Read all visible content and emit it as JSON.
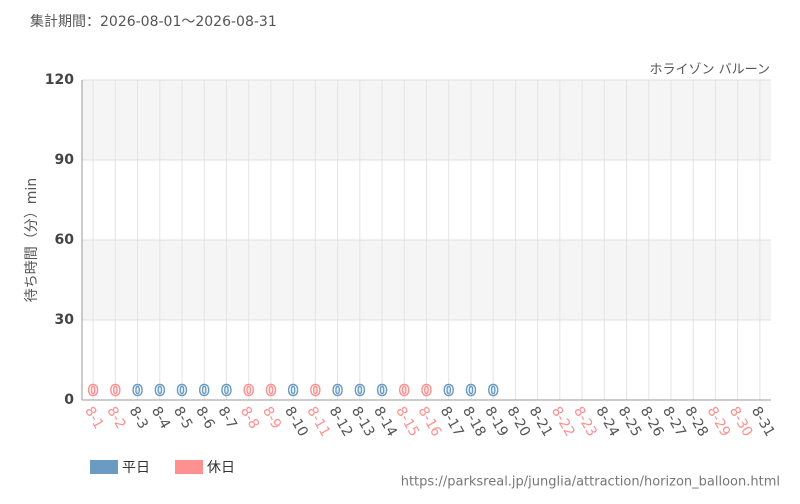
{
  "chart_data": {
    "type": "bar",
    "title": "集計期間：2026-08-01～2026-08-31",
    "subtitle": "ホライゾン バルーン",
    "y_label": "待ち時間（分）min",
    "source": "https://parksreal.jp/junglia/attraction/horizon_balloon.html",
    "categories": [
      "8-1",
      "8-2",
      "8-3",
      "8-4",
      "8-5",
      "8-6",
      "8-7",
      "8-8",
      "8-9",
      "8-10",
      "8-11",
      "8-12",
      "8-13",
      "8-14",
      "8-15",
      "8-16",
      "8-17",
      "8-18",
      "8-19",
      "8-20",
      "8-21",
      "8-22",
      "8-23",
      "8-24",
      "8-25",
      "8-26",
      "8-27",
      "8-28",
      "8-29",
      "8-30",
      "8-31"
    ],
    "category_colors": [
      "#ff9090",
      "#ff9090",
      "#555555",
      "#555555",
      "#555555",
      "#555555",
      "#555555",
      "#ff9090",
      "#ff9090",
      "#555555",
      "#ff9090",
      "#555555",
      "#555555",
      "#555555",
      "#ff9090",
      "#ff9090",
      "#555555",
      "#555555",
      "#555555",
      "#555555",
      "#555555",
      "#ff9090",
      "#ff9090",
      "#555555",
      "#555555",
      "#555555",
      "#555555",
      "#555555",
      "#ff9090",
      "#ff9090",
      "#555555"
    ],
    "series": [
      {
        "name": "平日",
        "color": "#6a9bc3",
        "values": [
          null,
          null,
          0,
          0,
          0,
          0,
          0,
          null,
          null,
          0,
          null,
          0,
          0,
          0,
          null,
          null,
          0,
          0,
          0,
          null,
          null,
          null,
          null,
          null,
          null,
          null,
          null,
          null,
          null,
          null,
          null
        ]
      },
      {
        "name": "休日",
        "color": "#ff9090",
        "values": [
          0,
          0,
          null,
          null,
          null,
          null,
          null,
          0,
          0,
          null,
          0,
          null,
          null,
          null,
          0,
          0,
          null,
          null,
          null,
          null,
          null,
          null,
          null,
          null,
          null,
          null,
          null,
          null,
          null,
          null,
          null
        ]
      }
    ],
    "ylim": [
      0,
      120
    ],
    "yticks": [
      0,
      30,
      60,
      90,
      120
    ],
    "grid": true
  }
}
